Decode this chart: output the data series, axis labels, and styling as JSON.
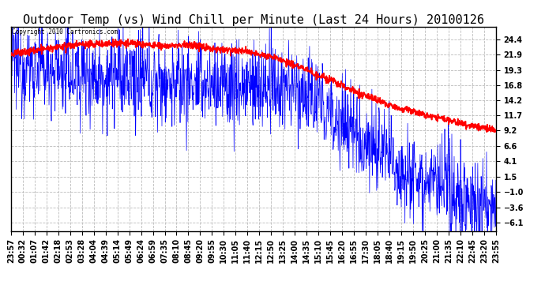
{
  "title": "Outdoor Temp (vs) Wind Chill per Minute (Last 24 Hours) 20100126",
  "copyright_text": "Copyright 2010 Cartronics.com",
  "yticks": [
    24.4,
    21.9,
    19.3,
    16.8,
    14.2,
    11.7,
    9.2,
    6.6,
    4.1,
    1.5,
    -1.0,
    -3.6,
    -6.1
  ],
  "ylim": [
    -7.5,
    26.5
  ],
  "xtick_labels": [
    "23:57",
    "00:32",
    "01:07",
    "01:42",
    "02:18",
    "02:53",
    "03:28",
    "04:04",
    "04:39",
    "05:14",
    "05:49",
    "06:24",
    "06:59",
    "07:35",
    "08:10",
    "08:45",
    "09:20",
    "09:55",
    "10:30",
    "11:05",
    "11:40",
    "12:15",
    "12:50",
    "13:25",
    "14:00",
    "14:35",
    "15:10",
    "15:45",
    "16:20",
    "16:55",
    "17:30",
    "18:05",
    "18:40",
    "19:15",
    "19:50",
    "20:25",
    "21:00",
    "21:35",
    "22:10",
    "22:45",
    "23:20",
    "23:55"
  ],
  "background_color": "#ffffff",
  "plot_bg_color": "#ffffff",
  "grid_color": "#bbbbbb",
  "title_fontsize": 11,
  "tick_fontsize": 7,
  "blue_color": "#0000ff",
  "red_color": "#ff0000",
  "n_points": 1440
}
